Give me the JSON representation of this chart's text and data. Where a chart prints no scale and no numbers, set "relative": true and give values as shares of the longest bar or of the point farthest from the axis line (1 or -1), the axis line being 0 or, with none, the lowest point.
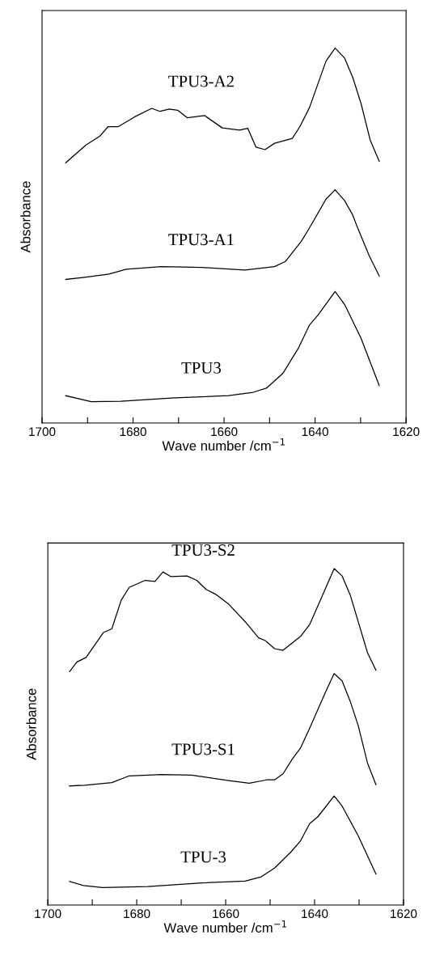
{
  "chart_data": [
    {
      "type": "line",
      "relative": true,
      "xlabel": "Wave number /cm$^{−1}$",
      "ylabel": "Absorbance",
      "xlim": [
        1700,
        1620
      ],
      "xticks": [
        1700,
        {
          "value": 1690,
          "label": null
        },
        1680,
        {
          "value": 1670,
          "label": null
        },
        1660,
        {
          "value": 1650,
          "label": null
        },
        1640,
        {
          "value": 1630,
          "label": null
        },
        1620
      ],
      "grid": false,
      "legend": false,
      "marker": "none",
      "line_style": "solid",
      "tick_labels": "x",
      "series": [
        {
          "name": "TPU3-A2",
          "color": "#000000",
          "x": [
            1694.8,
            1690.4,
            1687.4,
            1685.5,
            1683.3,
            1679.7,
            1675.9,
            1674.1,
            1672.0,
            1670.2,
            1668.1,
            1664.3,
            1660.4,
            1656.6,
            1654.8,
            1653.0,
            1651.0,
            1648.9,
            1645.0,
            1643.3,
            1641.2,
            1637.6,
            1635.6,
            1633.5,
            1631.7,
            1629.9,
            1627.9,
            1625.9
          ],
          "values": [
            0.694,
            0.741,
            0.764,
            0.79,
            0.79,
            0.816,
            0.839,
            0.831,
            0.837,
            0.834,
            0.814,
            0.82,
            0.787,
            0.781,
            0.786,
            0.736,
            0.729,
            0.746,
            0.759,
            0.791,
            0.842,
            0.965,
            1.0,
            0.973,
            0.921,
            0.852,
            0.755,
            0.698
          ]
        },
        {
          "name": "TPU3-A1",
          "color": "#000000",
          "x": [
            1694.8,
            1691.0,
            1685.3,
            1681.5,
            1673.8,
            1664.9,
            1655.4,
            1648.9,
            1646.5,
            1643.0,
            1641.2,
            1637.6,
            1635.6,
            1633.5,
            1631.7,
            1630.8,
            1628.1,
            1625.9
          ],
          "values": [
            0.383,
            0.388,
            0.397,
            0.41,
            0.417,
            0.415,
            0.408,
            0.417,
            0.431,
            0.485,
            0.521,
            0.597,
            0.622,
            0.593,
            0.554,
            0.525,
            0.446,
            0.392
          ]
        },
        {
          "name": "TPU3",
          "color": "#000000",
          "x": [
            1694.8,
            1689.2,
            1682.7,
            1670.8,
            1659.0,
            1653.6,
            1650.7,
            1647.1,
            1643.6,
            1641.2,
            1639.4,
            1635.6,
            1633.5,
            1629.9,
            1625.9
          ],
          "values": [
            0.073,
            0.057,
            0.058,
            0.067,
            0.073,
            0.082,
            0.093,
            0.132,
            0.201,
            0.262,
            0.287,
            0.351,
            0.316,
            0.226,
            0.1
          ]
        }
      ]
    },
    {
      "type": "line",
      "relative": true,
      "xlabel": "Wave number /cm$^{−1}$",
      "ylabel": "Absorbance",
      "xlim": [
        1700,
        1620
      ],
      "xticks": [
        1700,
        {
          "value": 1690,
          "label": null
        },
        1680,
        {
          "value": 1670,
          "label": null
        },
        1660,
        {
          "value": 1650,
          "label": null
        },
        1640,
        {
          "value": 1630,
          "label": null
        },
        1620
      ],
      "grid": false,
      "legend": false,
      "marker": "none",
      "line_style": "solid",
      "tick_labels": "x",
      "series": [
        {
          "name": "TPU3-S2",
          "color": "#000000",
          "x": [
            1695.1,
            1693.5,
            1691.4,
            1687.5,
            1685.6,
            1683.5,
            1681.7,
            1678.1,
            1675.9,
            1674.1,
            1672.3,
            1668.7,
            1666.5,
            1664.4,
            1662.3,
            1659.3,
            1655.6,
            1652.6,
            1651.1,
            1649.0,
            1647.1,
            1643.2,
            1641.1,
            1637.5,
            1635.6,
            1633.8,
            1632.0,
            1628.1,
            1626.2
          ],
          "values": [
            0.694,
            0.722,
            0.736,
            0.81,
            0.821,
            0.906,
            0.944,
            0.965,
            0.962,
            0.99,
            0.976,
            0.978,
            0.965,
            0.938,
            0.924,
            0.894,
            0.842,
            0.794,
            0.786,
            0.762,
            0.757,
            0.798,
            0.834,
            0.942,
            1.0,
            0.978,
            0.922,
            0.75,
            0.698
          ]
        },
        {
          "name": "TPU3-S1",
          "color": "#000000",
          "x": [
            1695.1,
            1691.7,
            1685.6,
            1681.7,
            1674.4,
            1667.7,
            1659.3,
            1654.7,
            1650.8,
            1649.0,
            1647.1,
            1645.0,
            1643.2,
            1641.1,
            1637.5,
            1635.6,
            1633.8,
            1632.0,
            1630.2,
            1628.1,
            1626.2
          ],
          "values": [
            0.354,
            0.356,
            0.364,
            0.384,
            0.388,
            0.386,
            0.37,
            0.362,
            0.372,
            0.372,
            0.39,
            0.434,
            0.466,
            0.526,
            0.634,
            0.688,
            0.666,
            0.606,
            0.534,
            0.422,
            0.358
          ]
        },
        {
          "name": "TPU-3",
          "color": "#000000",
          "x": [
            1695.1,
            1692.0,
            1687.7,
            1677.5,
            1665.3,
            1655.6,
            1652.0,
            1649.0,
            1645.3,
            1643.2,
            1641.1,
            1639.3,
            1635.6,
            1633.8,
            1630.2,
            1626.2
          ],
          "values": [
            0.07,
            0.058,
            0.052,
            0.055,
            0.066,
            0.071,
            0.084,
            0.11,
            0.158,
            0.19,
            0.242,
            0.262,
            0.324,
            0.294,
            0.206,
            0.092
          ]
        }
      ]
    }
  ]
}
